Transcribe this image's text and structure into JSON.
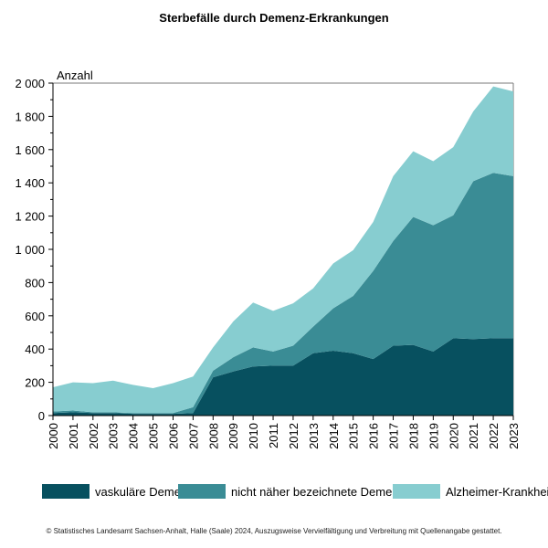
{
  "chart_data": {
    "type": "area",
    "stacked": true,
    "title": "Sterbefälle durch Demenz-Erkrankungen",
    "ylabel": "Anzahl",
    "xlabel": "",
    "ylim": [
      0,
      2000
    ],
    "yticks": [
      0,
      200,
      400,
      600,
      800,
      1000,
      1200,
      1400,
      1600,
      1800,
      2000
    ],
    "ytick_labels": [
      "0",
      "200",
      "400",
      "600",
      "800",
      "1 000",
      "1 200",
      "1 400",
      "1 600",
      "1 800",
      "2 000"
    ],
    "grid": false,
    "legend_position": "bottom",
    "categories": [
      "2000",
      "2001",
      "2002",
      "2003",
      "2004",
      "2005",
      "2006",
      "2007",
      "2008",
      "2009",
      "2010",
      "2011",
      "2012",
      "2013",
      "2014",
      "2015",
      "2016",
      "2017",
      "2018",
      "2019",
      "2020",
      "2021",
      "2022",
      "2023"
    ],
    "series": [
      {
        "name": "vaskuläre Demenz",
        "color": "#07505f",
        "values": [
          15,
          20,
          15,
          15,
          10,
          10,
          10,
          15,
          230,
          265,
          295,
          300,
          300,
          375,
          390,
          375,
          340,
          420,
          425,
          385,
          465,
          460,
          465,
          465
        ]
      },
      {
        "name": "nicht näher bezeichnete Demenz",
        "color": "#3a8c95",
        "values": [
          10,
          10,
          5,
          5,
          5,
          5,
          5,
          35,
          40,
          85,
          115,
          85,
          120,
          160,
          255,
          345,
          530,
          630,
          770,
          760,
          740,
          950,
          995,
          975
        ]
      },
      {
        "name": "Alzheimer-Krankheit",
        "color": "#87cdd0",
        "values": [
          145,
          170,
          175,
          190,
          170,
          150,
          180,
          185,
          140,
          215,
          270,
          245,
          255,
          230,
          270,
          275,
          295,
          390,
          395,
          385,
          410,
          420,
          520,
          510
        ]
      }
    ]
  },
  "footer": {
    "source": "© Statistisches Landesamt Sachsen-Anhalt, Halle (Saale) 2024, Auszugsweise Vervielfältigung und Verbreitung mit Quellenangabe gestattet."
  }
}
